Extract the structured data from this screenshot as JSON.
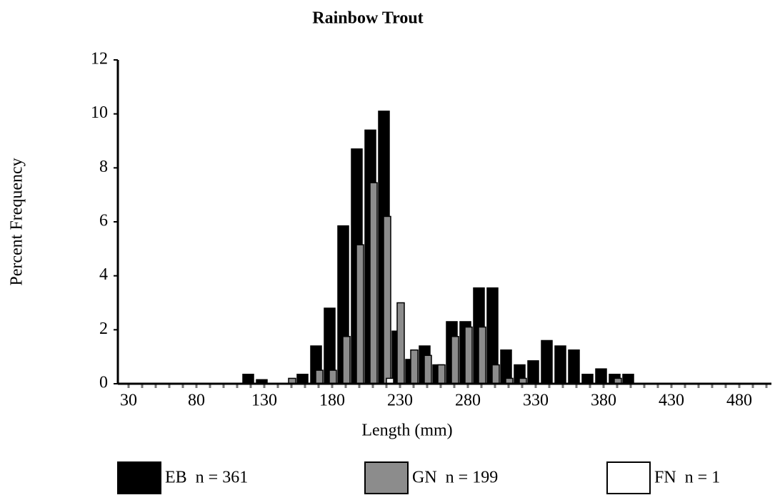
{
  "chart_data": {
    "type": "bar",
    "title": "Rainbow Trout",
    "x_label": "Length (mm)",
    "y_label": "Percent Frequency",
    "categories": [
      30,
      null,
      null,
      null,
      null,
      80,
      null,
      null,
      null,
      null,
      130,
      null,
      null,
      null,
      null,
      180,
      null,
      null,
      null,
      null,
      230,
      null,
      null,
      null,
      null,
      280,
      null,
      null,
      null,
      null,
      330,
      null,
      null,
      null,
      null,
      380,
      null,
      null,
      null,
      null,
      430,
      null,
      null,
      null,
      null,
      480,
      null,
      null
    ],
    "series": [
      {
        "name": "EB  n = 361",
        "color": "#000000",
        "values": [
          0,
          0,
          0,
          0,
          0,
          0,
          0,
          0,
          0,
          0.35,
          0.15,
          0,
          0,
          0.35,
          1.4,
          2.8,
          5.85,
          8.7,
          9.4,
          10.1,
          1.95,
          0.9,
          1.4,
          0.7,
          2.3,
          2.3,
          3.55,
          3.55,
          1.25,
          0.7,
          0.85,
          1.6,
          1.4,
          1.25,
          0.35,
          0.55,
          0.35,
          0.35,
          0,
          0,
          0,
          0,
          0,
          0,
          0,
          0,
          0,
          0
        ]
      },
      {
        "name": "GN  n = 199",
        "color": "#8c8c8c",
        "values": [
          0,
          0,
          0,
          0,
          0,
          0,
          0,
          0,
          0,
          0,
          0,
          0,
          0.2,
          0,
          0.5,
          0.5,
          1.75,
          5.15,
          7.45,
          6.2,
          3.0,
          1.25,
          1.05,
          0.7,
          1.75,
          2.1,
          2.1,
          0.7,
          0.2,
          0.2,
          0,
          0,
          0,
          0,
          0,
          0,
          0.2,
          0,
          0,
          0,
          0,
          0,
          0,
          0,
          0,
          0,
          0,
          0
        ]
      },
      {
        "name": "FN  n = 1",
        "color": "#ffffff",
        "values": [
          0,
          0,
          0,
          0,
          0,
          0,
          0,
          0,
          0,
          0,
          0,
          0,
          0,
          0,
          0,
          0,
          0,
          0,
          0,
          0.2,
          0,
          0,
          0,
          0,
          0,
          0,
          0,
          0,
          0,
          0,
          0,
          0,
          0,
          0,
          0,
          0,
          0,
          0,
          0,
          0,
          0,
          0,
          0,
          0,
          0,
          0,
          0,
          0
        ]
      }
    ],
    "ylim": [
      0,
      12
    ],
    "yticks": [
      0,
      2,
      4,
      6,
      8,
      10,
      12
    ],
    "legend": "bottom"
  }
}
